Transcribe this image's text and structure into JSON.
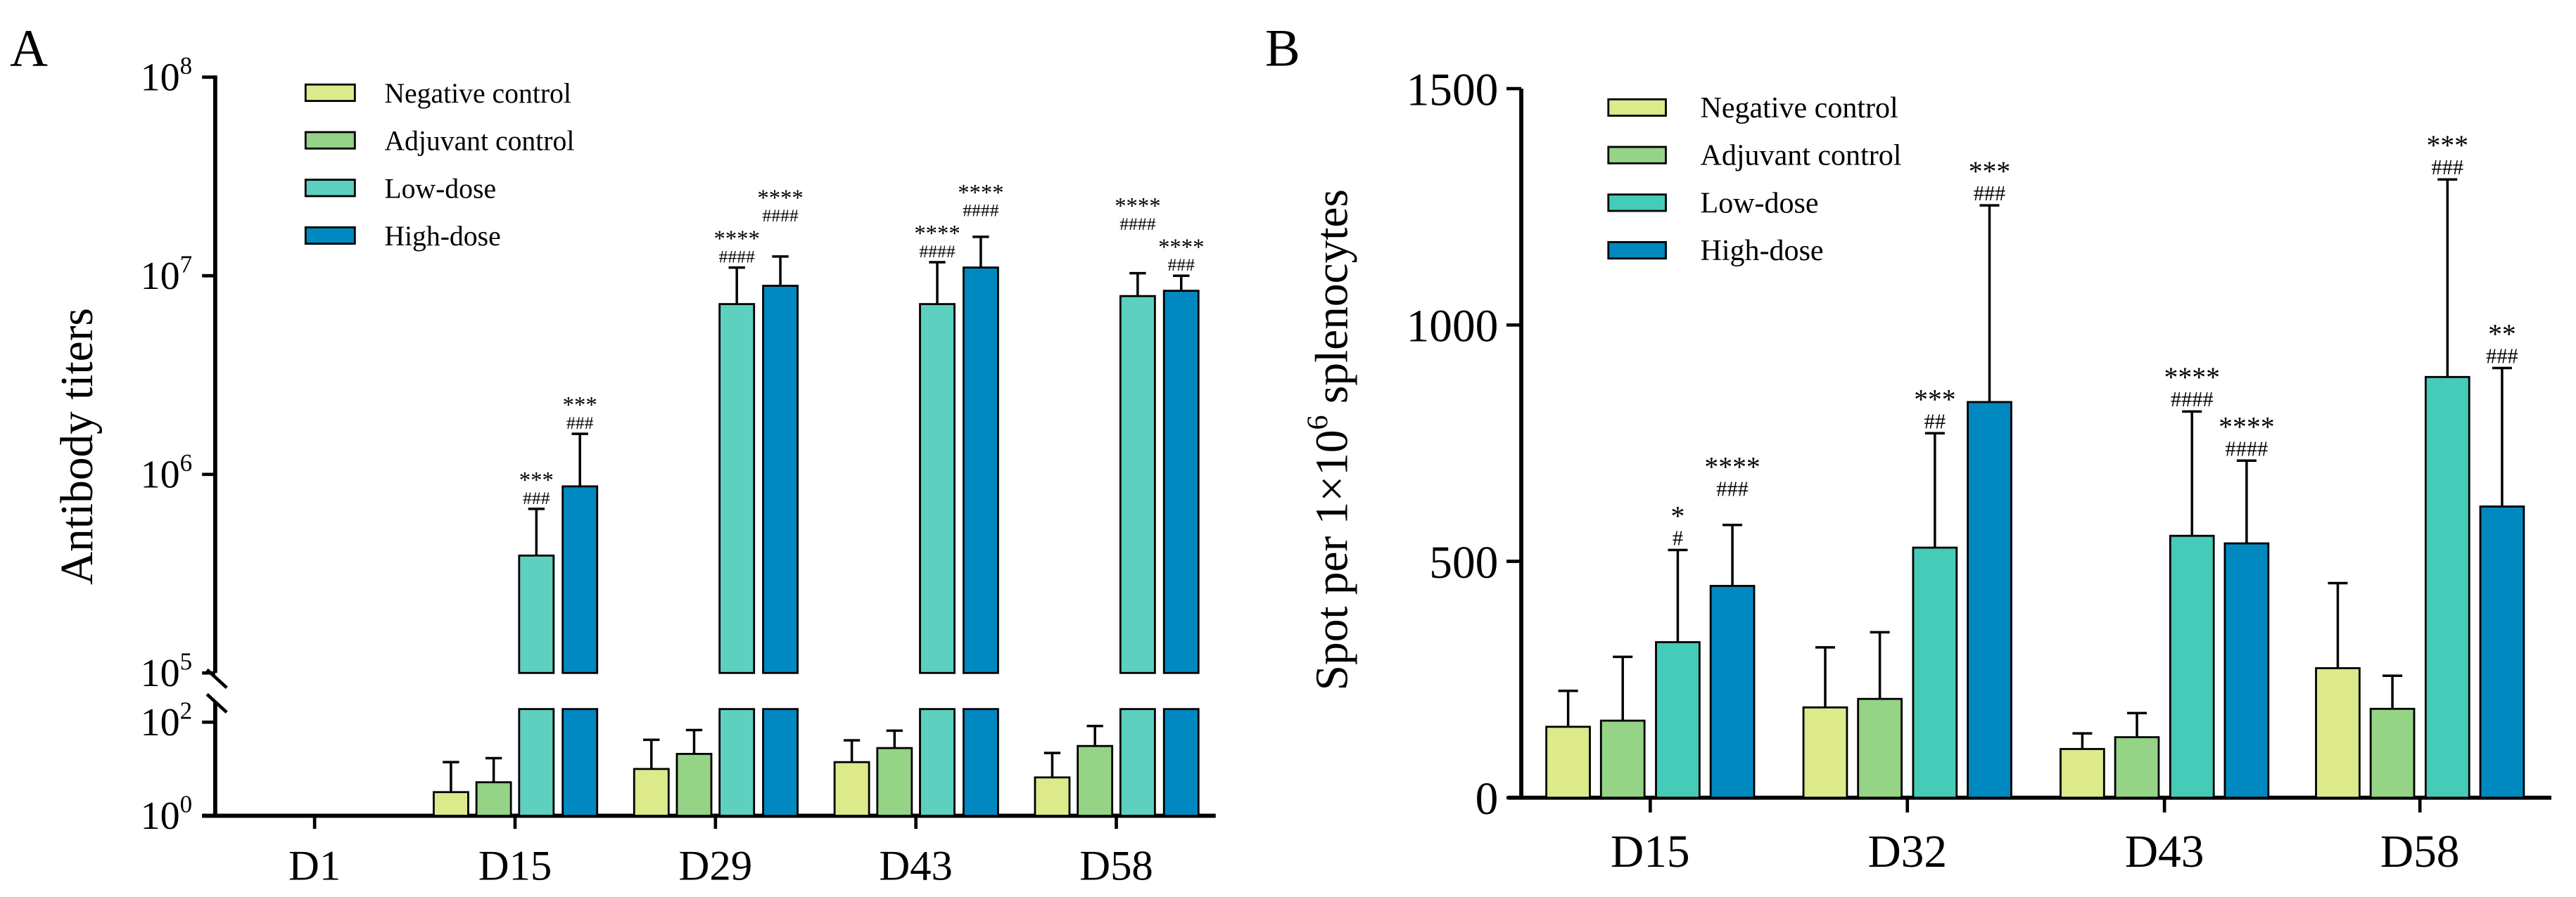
{
  "colors": {
    "negative": "#dcea8c",
    "adjuvant": "#95d386",
    "low_a": "#5dd0bf",
    "low_b": "#45cbb8",
    "high": "#0089c0"
  },
  "chart_data": [
    {
      "panel": "A",
      "type": "bar",
      "scale": "log-broken",
      "ylabel": "Antibody titers",
      "yticks_upper": [
        {
          "exp": 5
        },
        {
          "exp": 6
        },
        {
          "exp": 7
        },
        {
          "exp": 8
        }
      ],
      "yticks_lower": [
        {
          "exp": 0
        },
        {
          "exp": 2
        }
      ],
      "tick_base": "10",
      "categories": [
        "D1",
        "D15",
        "D29",
        "D43",
        "D58"
      ],
      "legend": [
        "Negative  control",
        "Adjuvant control",
        "Low-dose",
        "High-dose"
      ],
      "legend_position": "top-left",
      "series": [
        {
          "name": "Negative control",
          "values": [
            null,
            3.2,
            10,
            14,
            6.6
          ],
          "errors_top": [
            null,
            14,
            42,
            41,
            22
          ],
          "annotations": [
            null,
            null,
            null,
            null,
            null
          ]
        },
        {
          "name": "Adjuvant control",
          "values": [
            null,
            5.2,
            21,
            28,
            31
          ],
          "errors_top": [
            null,
            17,
            68,
            66,
            83
          ],
          "annotations": [
            null,
            null,
            null,
            null,
            null
          ]
        },
        {
          "name": "Low-dose",
          "values": [
            null,
            390000,
            7200000,
            7200000,
            7900000
          ],
          "errors_top": [
            null,
            670000,
            11000000,
            11700000,
            10300000
          ],
          "annotations": [
            null,
            [
              "***",
              "###"
            ],
            [
              "****",
              "####"
            ],
            [
              "****",
              "####"
            ],
            [
              "****",
              "####"
            ]
          ]
        },
        {
          "name": "High-dose",
          "values": [
            null,
            870000,
            8900000,
            11000000,
            8400000
          ],
          "errors_top": [
            null,
            1600000,
            12500000,
            15700000,
            10000000
          ],
          "annotations": [
            null,
            [
              "***",
              "###"
            ],
            [
              "****",
              "####"
            ],
            [
              "****",
              "####"
            ],
            [
              "****",
              "###"
            ]
          ]
        }
      ]
    },
    {
      "panel": "B",
      "type": "bar",
      "ylabel_pre": "Spot per 1×10",
      "ylabel_sup": "6",
      "ylabel_post": " splenocytes",
      "ylim": [
        0,
        1500
      ],
      "yticks": [
        "0",
        "500",
        "1000",
        "1500"
      ],
      "categories": [
        "D15",
        "D32",
        "D43",
        "D58"
      ],
      "legend": [
        "Negative control",
        "Adjuvant control",
        "Low-dose",
        "High-dose"
      ],
      "legend_position": "top-left",
      "series": [
        {
          "name": "Negative control",
          "values": [
            150,
            191,
            103,
            274
          ],
          "errors_top": [
            226,
            318,
            136,
            454
          ],
          "annotations": [
            null,
            null,
            null,
            null
          ]
        },
        {
          "name": "Adjuvant control",
          "values": [
            163,
            209,
            128,
            188
          ],
          "errors_top": [
            298,
            350,
            179,
            258
          ],
          "annotations": [
            null,
            null,
            null,
            null
          ]
        },
        {
          "name": "Low-dose",
          "values": [
            329,
            529,
            554,
            890
          ],
          "errors_top": [
            524,
            771,
            817,
            1308
          ],
          "annotations": [
            [
              "*",
              "#"
            ],
            [
              "***",
              "##"
            ],
            [
              "****",
              "####"
            ],
            [
              "***",
              "###"
            ]
          ]
        },
        {
          "name": "High-dose",
          "values": [
            448,
            837,
            538,
            616
          ],
          "errors_top": [
            577,
            1253,
            713,
            909
          ],
          "annotations": [
            [
              "****",
              "###"
            ],
            [
              "***",
              "###"
            ],
            [
              "****",
              "####"
            ],
            [
              "**",
              "###"
            ]
          ]
        }
      ]
    }
  ],
  "panel_labels": [
    "A",
    "B"
  ]
}
